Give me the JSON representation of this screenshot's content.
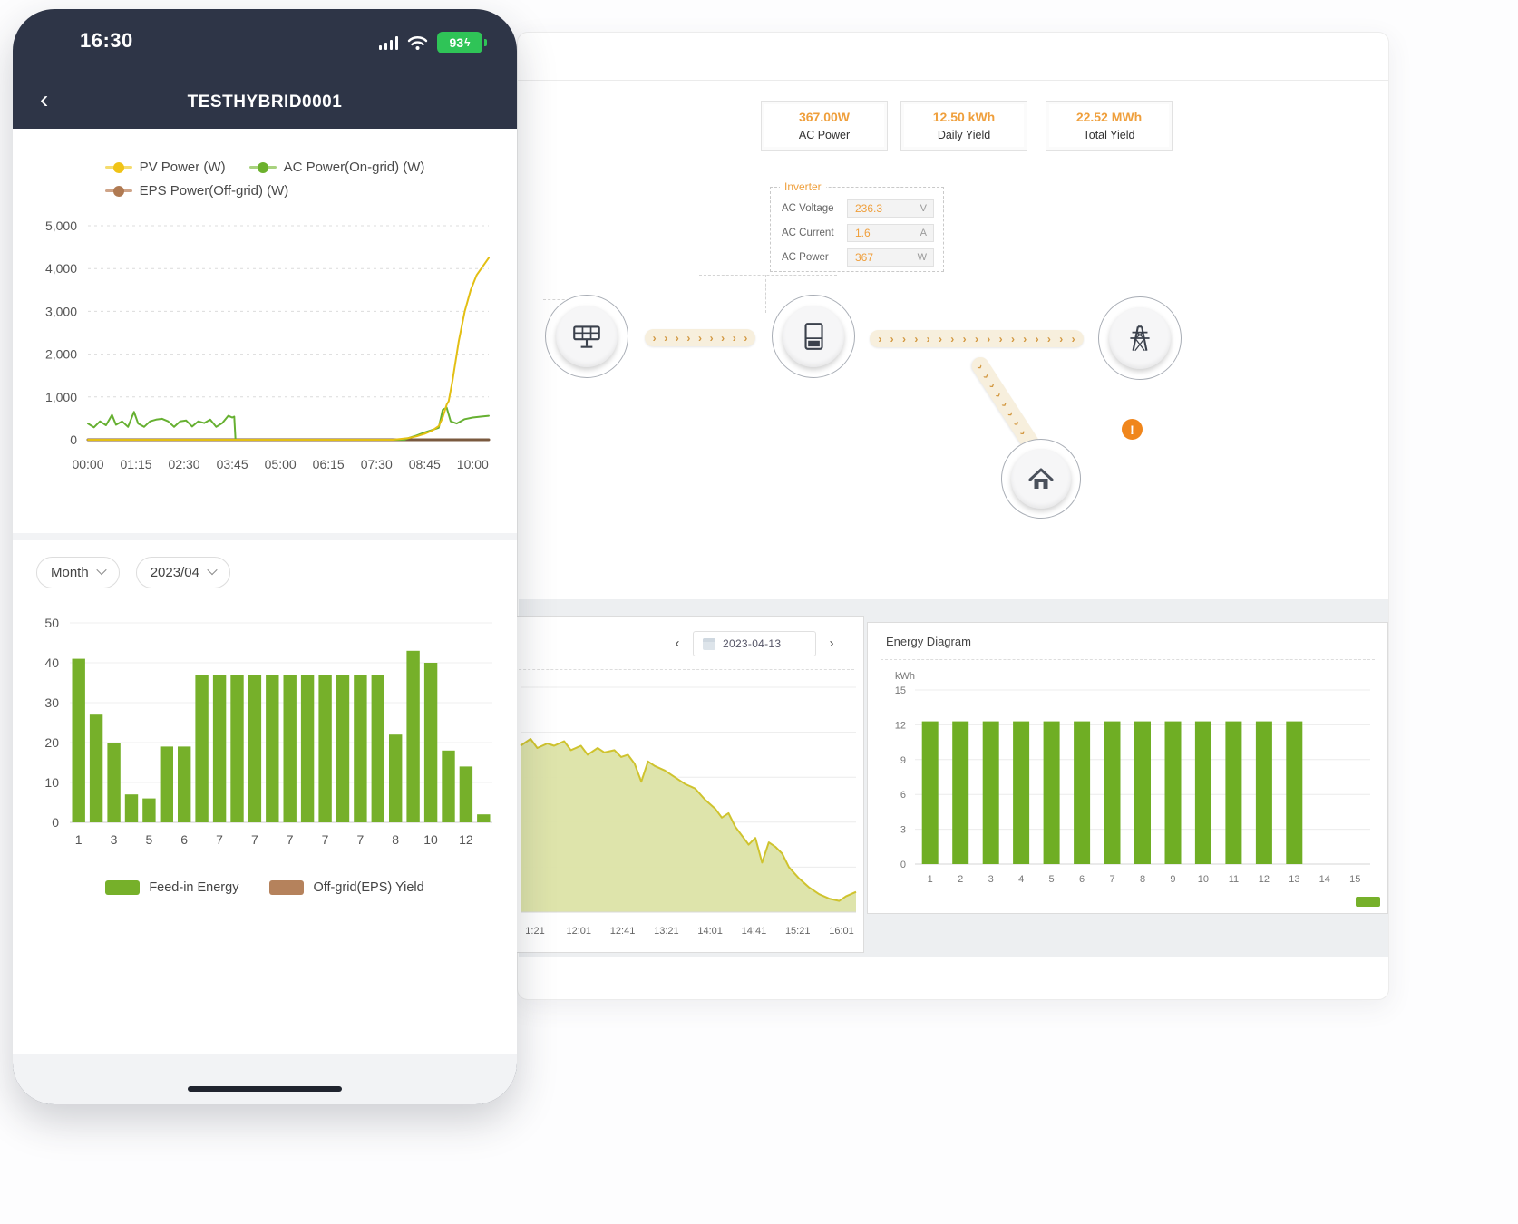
{
  "phone": {
    "status_bar": {
      "time": "16:30",
      "battery_percent": "93",
      "bolt": "ϟ"
    },
    "nav": {
      "back": "‹",
      "title": "TESTHYBRID0001"
    },
    "line_legend": [
      {
        "label": "PV Power (W)",
        "color": "#f0c316"
      },
      {
        "label": "AC Power(On-grid) (W)",
        "color": "#6cb12d"
      },
      {
        "label": "EPS Power(Off-grid) (W)",
        "color": "#b07a52"
      }
    ],
    "filters": {
      "period": "Month",
      "month": "2023/04"
    },
    "bar_legend": [
      {
        "label": "Feed-in Energy",
        "color": "#76b02a"
      },
      {
        "label": "Off-grid(EPS) Yield",
        "color": "#b5825c"
      }
    ]
  },
  "desktop": {
    "stats": [
      {
        "value": "367.00W",
        "label": "AC Power"
      },
      {
        "value": "12.50 kWh",
        "label": "Daily Yield"
      },
      {
        "value": "22.52 MWh",
        "label": "Total Yield"
      }
    ],
    "inverter_panel": {
      "title": "Inverter",
      "rows": [
        {
          "label": "AC Voltage",
          "value": "236.3",
          "unit": "V"
        },
        {
          "label": "AC Current",
          "value": "1.6",
          "unit": "A"
        },
        {
          "label": "AC Power",
          "value": "367",
          "unit": "W"
        }
      ]
    },
    "alert_glyph": "!",
    "day_panel": {
      "prev": "‹",
      "next": "›",
      "date": "2023-04-13"
    },
    "energy_panel": {
      "title": "Energy Diagram",
      "ylabel": "kWh"
    }
  },
  "chart_data": [
    {
      "id": "phone-power-line",
      "type": "line",
      "title": "Realtime power curve (phone)",
      "x_tick_labels": [
        "00:00",
        "01:15",
        "02:30",
        "03:45",
        "05:00",
        "06:15",
        "07:30",
        "08:45",
        "10:00"
      ],
      "ylim": [
        0,
        5000
      ],
      "yticks": [
        0,
        1000,
        2000,
        3000,
        4000,
        5000
      ],
      "legend_position": "top",
      "grid": true,
      "series": [
        {
          "name": "EPS Power(Off-grid) (W)",
          "color": "#7a593f",
          "width": 3,
          "points": [
            [
              0,
              0
            ],
            [
              1,
              0
            ]
          ]
        },
        {
          "name": "AC Power(On-grid) (W)",
          "color": "#66b031",
          "width": 2,
          "points": [
            [
              0,
              380
            ],
            [
              0.015,
              290
            ],
            [
              0.03,
              430
            ],
            [
              0.045,
              340
            ],
            [
              0.06,
              580
            ],
            [
              0.07,
              350
            ],
            [
              0.085,
              430
            ],
            [
              0.1,
              300
            ],
            [
              0.115,
              650
            ],
            [
              0.125,
              380
            ],
            [
              0.14,
              300
            ],
            [
              0.155,
              430
            ],
            [
              0.17,
              470
            ],
            [
              0.185,
              490
            ],
            [
              0.2,
              430
            ],
            [
              0.215,
              300
            ],
            [
              0.23,
              430
            ],
            [
              0.245,
              450
            ],
            [
              0.26,
              310
            ],
            [
              0.275,
              430
            ],
            [
              0.29,
              390
            ],
            [
              0.305,
              470
            ],
            [
              0.32,
              300
            ],
            [
              0.335,
              390
            ],
            [
              0.35,
              560
            ],
            [
              0.36,
              520
            ],
            [
              0.365,
              540
            ],
            [
              0.368,
              0
            ],
            [
              0.6,
              0
            ],
            [
              0.79,
              0
            ],
            [
              0.8,
              40
            ],
            [
              0.82,
              100
            ],
            [
              0.84,
              170
            ],
            [
              0.86,
              230
            ],
            [
              0.875,
              280
            ],
            [
              0.885,
              700
            ],
            [
              0.895,
              750
            ],
            [
              0.905,
              430
            ],
            [
              0.92,
              380
            ],
            [
              0.94,
              480
            ],
            [
              0.96,
              520
            ],
            [
              0.98,
              540
            ],
            [
              1,
              560
            ]
          ]
        },
        {
          "name": "PV Power (W)",
          "color": "#e3bf13",
          "width": 2,
          "points": [
            [
              0,
              0
            ],
            [
              0.76,
              0
            ],
            [
              0.78,
              20
            ],
            [
              0.8,
              40
            ],
            [
              0.82,
              80
            ],
            [
              0.84,
              140
            ],
            [
              0.86,
              220
            ],
            [
              0.875,
              320
            ],
            [
              0.885,
              520
            ],
            [
              0.895,
              820
            ],
            [
              0.9,
              900
            ],
            [
              0.91,
              1400
            ],
            [
              0.925,
              2300
            ],
            [
              0.94,
              3000
            ],
            [
              0.955,
              3500
            ],
            [
              0.97,
              3850
            ],
            [
              0.985,
              4050
            ],
            [
              1,
              4250
            ]
          ]
        }
      ]
    },
    {
      "id": "phone-month-bars",
      "type": "bar",
      "title": "Monthly feed-in energy 2023/04 (phone)",
      "series_name": "Feed-in Energy",
      "values": [
        41,
        27,
        20,
        7,
        6,
        19,
        19,
        37,
        37,
        37,
        37,
        37,
        37,
        37,
        37,
        37,
        37,
        37,
        22,
        43,
        40,
        18,
        14,
        2
      ],
      "x_tick_labels": [
        "1",
        "3",
        "5",
        "6",
        "7",
        "7",
        "7",
        "7",
        "7",
        "8",
        "10",
        "12"
      ],
      "ylim": [
        0,
        50
      ],
      "yticks": [
        0,
        10,
        20,
        30,
        40,
        50
      ],
      "bar_color": "#76b02a",
      "grid": true
    },
    {
      "id": "desktop-day-area",
      "type": "area",
      "title": "Day power curve 2023-04-13 (desktop, y-axis hidden behind phone)",
      "x_tick_labels": [
        "1:21",
        "12:01",
        "12:41",
        "13:21",
        "14:01",
        "14:41",
        "15:21",
        "16:01"
      ],
      "unit": "relative power (0-1, axis labels not visible)",
      "fill": "#dce3a6",
      "stroke": "#cfc32e",
      "grid": true,
      "points": [
        [
          0,
          0.74
        ],
        [
          0.03,
          0.77
        ],
        [
          0.05,
          0.73
        ],
        [
          0.08,
          0.75
        ],
        [
          0.1,
          0.74
        ],
        [
          0.13,
          0.76
        ],
        [
          0.15,
          0.72
        ],
        [
          0.18,
          0.74
        ],
        [
          0.2,
          0.7
        ],
        [
          0.23,
          0.73
        ],
        [
          0.25,
          0.71
        ],
        [
          0.28,
          0.72
        ],
        [
          0.3,
          0.69
        ],
        [
          0.32,
          0.7
        ],
        [
          0.34,
          0.66
        ],
        [
          0.36,
          0.58
        ],
        [
          0.38,
          0.67
        ],
        [
          0.4,
          0.65
        ],
        [
          0.43,
          0.63
        ],
        [
          0.46,
          0.6
        ],
        [
          0.49,
          0.57
        ],
        [
          0.52,
          0.55
        ],
        [
          0.55,
          0.5
        ],
        [
          0.58,
          0.46
        ],
        [
          0.6,
          0.42
        ],
        [
          0.62,
          0.44
        ],
        [
          0.64,
          0.38
        ],
        [
          0.66,
          0.34
        ],
        [
          0.68,
          0.3
        ],
        [
          0.7,
          0.33
        ],
        [
          0.72,
          0.22
        ],
        [
          0.74,
          0.31
        ],
        [
          0.76,
          0.29
        ],
        [
          0.78,
          0.26
        ],
        [
          0.8,
          0.2
        ],
        [
          0.83,
          0.15
        ],
        [
          0.86,
          0.11
        ],
        [
          0.89,
          0.08
        ],
        [
          0.92,
          0.06
        ],
        [
          0.95,
          0.05
        ],
        [
          0.97,
          0.07
        ],
        [
          1,
          0.09
        ]
      ]
    },
    {
      "id": "desktop-energy-bars",
      "type": "bar",
      "title": "Energy Diagram",
      "ylabel": "kWh",
      "categories": [
        "1",
        "2",
        "3",
        "4",
        "5",
        "6",
        "7",
        "8",
        "9",
        "10",
        "11",
        "12",
        "13",
        "14",
        "15"
      ],
      "values": [
        12.3,
        12.3,
        12.3,
        12.3,
        12.3,
        12.3,
        12.3,
        12.3,
        12.3,
        12.3,
        12.3,
        12.3,
        12.3,
        0,
        0
      ],
      "ylim": [
        0,
        15
      ],
      "yticks": [
        0,
        3,
        6,
        9,
        12,
        15
      ],
      "bar_color": "#6fae24",
      "grid": true
    }
  ]
}
